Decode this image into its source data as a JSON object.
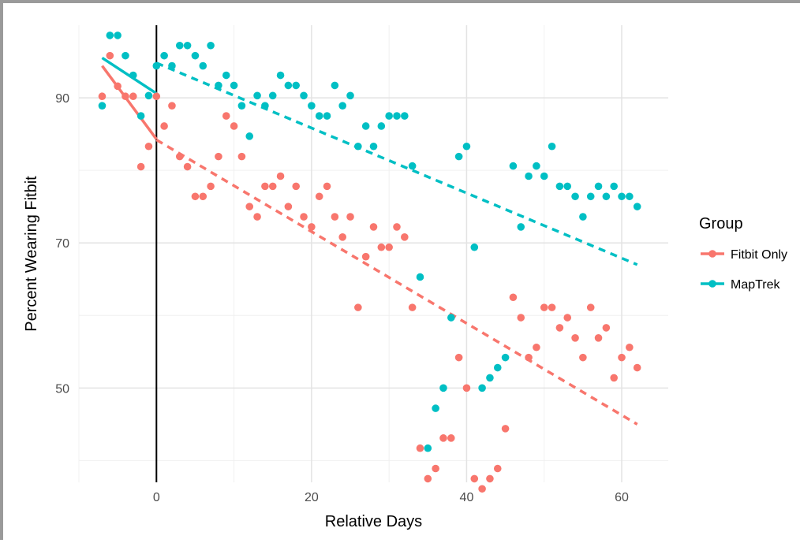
{
  "chart_data": {
    "type": "scatter",
    "xlabel": "Relative Days",
    "ylabel": "Percent Wearing Fitbit",
    "xlim": [
      -10,
      66
    ],
    "ylim": [
      37,
      100
    ],
    "xticks": [
      0,
      20,
      40,
      60
    ],
    "yticks": [
      50,
      70,
      90
    ],
    "grid": true,
    "vline_x": 0,
    "legend": {
      "title": "Group",
      "position": "right"
    },
    "series": [
      {
        "name": "Fitbit Only",
        "color": "#F8766D",
        "points": [
          [
            -7,
            90.2
          ],
          [
            -6,
            95.8
          ],
          [
            -5,
            91.6
          ],
          [
            -4,
            90.2
          ],
          [
            -3,
            90.2
          ],
          [
            -2,
            80.5
          ],
          [
            -1,
            83.3
          ],
          [
            0,
            90.2
          ],
          [
            1,
            86.1
          ],
          [
            2,
            88.9
          ],
          [
            3,
            81.9
          ],
          [
            4,
            80.5
          ],
          [
            5,
            76.4
          ],
          [
            6,
            76.4
          ],
          [
            7,
            77.8
          ],
          [
            8,
            81.9
          ],
          [
            9,
            87.5
          ],
          [
            10,
            86.1
          ],
          [
            11,
            81.9
          ],
          [
            12,
            75.0
          ],
          [
            13,
            73.6
          ],
          [
            14,
            77.8
          ],
          [
            15,
            77.8
          ],
          [
            16,
            79.2
          ],
          [
            17,
            75.0
          ],
          [
            18,
            77.8
          ],
          [
            19,
            73.6
          ],
          [
            20,
            72.2
          ],
          [
            21,
            76.4
          ],
          [
            22,
            77.8
          ],
          [
            23,
            73.6
          ],
          [
            24,
            70.8
          ],
          [
            25,
            73.6
          ],
          [
            26,
            61.1
          ],
          [
            27,
            68.1
          ],
          [
            28,
            72.2
          ],
          [
            29,
            69.4
          ],
          [
            30,
            69.4
          ],
          [
            31,
            72.2
          ],
          [
            32,
            70.8
          ],
          [
            33,
            61.1
          ],
          [
            34,
            41.7
          ],
          [
            35,
            37.5
          ],
          [
            36,
            38.9
          ],
          [
            37,
            43.1
          ],
          [
            38,
            43.1
          ],
          [
            39,
            54.2
          ],
          [
            40,
            50.0
          ],
          [
            41,
            37.5
          ],
          [
            42,
            36.1
          ],
          [
            43,
            37.5
          ],
          [
            44,
            38.9
          ],
          [
            45,
            44.4
          ],
          [
            46,
            62.5
          ],
          [
            47,
            59.7
          ],
          [
            48,
            54.2
          ],
          [
            49,
            55.6
          ],
          [
            50,
            61.1
          ],
          [
            51,
            61.1
          ],
          [
            52,
            58.3
          ],
          [
            53,
            59.7
          ],
          [
            54,
            56.9
          ],
          [
            55,
            54.2
          ],
          [
            56,
            61.1
          ],
          [
            57,
            56.9
          ],
          [
            58,
            58.3
          ],
          [
            59,
            51.4
          ],
          [
            60,
            54.2
          ],
          [
            61,
            55.6
          ],
          [
            62,
            52.8
          ]
        ],
        "trend_pre": [
          [
            -7,
            94.4
          ],
          [
            0,
            84.3
          ]
        ],
        "trend_post": [
          [
            0,
            84.2
          ],
          [
            62,
            45.0
          ]
        ]
      },
      {
        "name": "MapTrek",
        "color": "#00BFC4",
        "points": [
          [
            -7,
            88.9
          ],
          [
            -6,
            98.6
          ],
          [
            -5,
            98.6
          ],
          [
            -4,
            95.8
          ],
          [
            -3,
            93.1
          ],
          [
            -2,
            87.5
          ],
          [
            -1,
            90.3
          ],
          [
            0,
            94.4
          ],
          [
            1,
            95.8
          ],
          [
            2,
            94.4
          ],
          [
            3,
            97.2
          ],
          [
            4,
            97.2
          ],
          [
            5,
            95.8
          ],
          [
            6,
            94.4
          ],
          [
            7,
            97.2
          ],
          [
            8,
            91.7
          ],
          [
            9,
            93.1
          ],
          [
            10,
            91.7
          ],
          [
            11,
            88.9
          ],
          [
            12,
            84.7
          ],
          [
            13,
            90.3
          ],
          [
            14,
            88.9
          ],
          [
            15,
            90.3
          ],
          [
            16,
            93.1
          ],
          [
            17,
            91.7
          ],
          [
            18,
            91.7
          ],
          [
            19,
            90.3
          ],
          [
            20,
            88.9
          ],
          [
            21,
            87.5
          ],
          [
            22,
            87.5
          ],
          [
            23,
            91.7
          ],
          [
            24,
            88.9
          ],
          [
            25,
            90.3
          ],
          [
            26,
            83.3
          ],
          [
            27,
            86.1
          ],
          [
            28,
            83.3
          ],
          [
            29,
            86.1
          ],
          [
            30,
            87.5
          ],
          [
            31,
            87.5
          ],
          [
            32,
            87.5
          ],
          [
            33,
            80.6
          ],
          [
            34,
            65.3
          ],
          [
            35,
            41.7
          ],
          [
            36,
            47.2
          ],
          [
            37,
            50.0
          ],
          [
            38,
            59.7
          ],
          [
            39,
            81.9
          ],
          [
            40,
            83.3
          ],
          [
            41,
            69.4
          ],
          [
            42,
            50.0
          ],
          [
            43,
            51.4
          ],
          [
            44,
            52.8
          ],
          [
            45,
            54.2
          ],
          [
            46,
            80.6
          ],
          [
            47,
            72.2
          ],
          [
            48,
            79.2
          ],
          [
            49,
            80.6
          ],
          [
            50,
            79.2
          ],
          [
            51,
            83.3
          ],
          [
            52,
            77.8
          ],
          [
            53,
            77.8
          ],
          [
            54,
            76.4
          ],
          [
            55,
            73.6
          ],
          [
            56,
            76.4
          ],
          [
            57,
            77.8
          ],
          [
            58,
            76.4
          ],
          [
            59,
            77.8
          ],
          [
            60,
            76.4
          ],
          [
            61,
            76.4
          ],
          [
            62,
            75.0
          ]
        ],
        "trend_pre": [
          [
            -7,
            95.5
          ],
          [
            0,
            90.6
          ]
        ],
        "trend_post": [
          [
            0,
            94.8
          ],
          [
            62,
            67.0
          ]
        ]
      }
    ]
  }
}
